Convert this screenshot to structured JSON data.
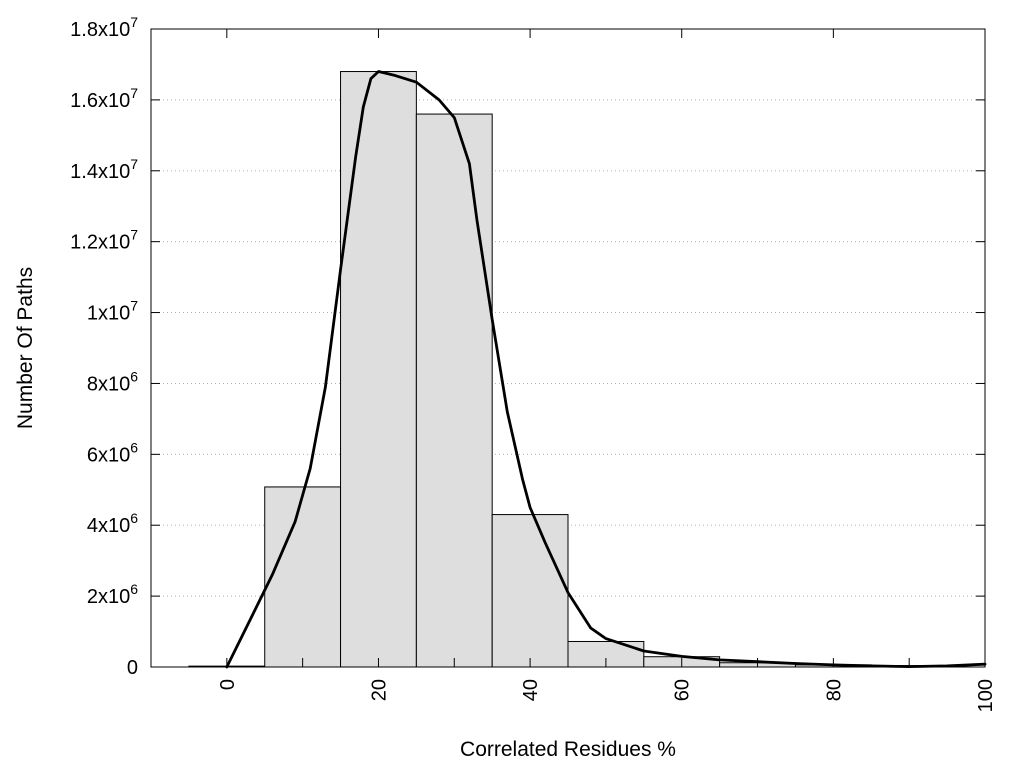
{
  "chart_data": {
    "type": "bar",
    "title": "",
    "xlabel": "Correlated Residues %",
    "ylabel": "Number Of Paths",
    "xlim": [
      -10,
      100
    ],
    "ylim": [
      0,
      18000000
    ],
    "grid": "horizontal-dotted",
    "legend": "none",
    "bars": [
      {
        "x": 0,
        "value": 25000
      },
      {
        "x": 10,
        "value": 5080000
      },
      {
        "x": 20,
        "value": 16800000
      },
      {
        "x": 30,
        "value": 15600000
      },
      {
        "x": 40,
        "value": 4300000
      },
      {
        "x": 50,
        "value": 720000
      },
      {
        "x": 60,
        "value": 290000
      },
      {
        "x": 70,
        "value": 120000
      },
      {
        "x": 80,
        "value": 60000
      },
      {
        "x": 90,
        "value": 40000
      }
    ],
    "bar_width": 10,
    "curve": {
      "x": [
        0,
        3,
        6,
        9,
        11,
        13,
        15,
        17,
        18,
        19,
        20,
        22,
        25,
        28,
        30,
        32,
        33,
        35,
        37,
        39,
        40,
        42,
        45,
        48,
        50,
        55,
        60,
        65,
        70,
        75,
        80,
        85,
        90,
        95,
        100
      ],
      "y": [
        0,
        1300000,
        2600000,
        4100000,
        5600000,
        7900000,
        11200000,
        14400000,
        15800000,
        16600000,
        16800000,
        16700000,
        16500000,
        16000000,
        15500000,
        14200000,
        12600000,
        9800000,
        7200000,
        5300000,
        4500000,
        3500000,
        2100000,
        1100000,
        800000,
        450000,
        300000,
        200000,
        150000,
        100000,
        60000,
        30000,
        10000,
        30000,
        80000
      ]
    },
    "x_ticks": [
      {
        "value": 0,
        "label": "0"
      },
      {
        "value": 20,
        "label": "20"
      },
      {
        "value": 40,
        "label": "40"
      },
      {
        "value": 60,
        "label": "60"
      },
      {
        "value": 80,
        "label": "80"
      },
      {
        "value": 100,
        "label": "100"
      }
    ],
    "x_minor_ticks": [
      10,
      30,
      50,
      70,
      90
    ],
    "y_ticks": [
      {
        "value": 0,
        "mantissa": "0",
        "exp": ""
      },
      {
        "value": 2000000,
        "mantissa": "2x10",
        "exp": "6"
      },
      {
        "value": 4000000,
        "mantissa": "4x10",
        "exp": "6"
      },
      {
        "value": 6000000,
        "mantissa": "6x10",
        "exp": "6"
      },
      {
        "value": 8000000,
        "mantissa": "8x10",
        "exp": "6"
      },
      {
        "value": 10000000,
        "mantissa": "1x10",
        "exp": "7"
      },
      {
        "value": 12000000,
        "mantissa": "1.2x10",
        "exp": "7"
      },
      {
        "value": 14000000,
        "mantissa": "1.4x10",
        "exp": "7"
      },
      {
        "value": 16000000,
        "mantissa": "1.6x10",
        "exp": "7"
      },
      {
        "value": 18000000,
        "mantissa": "1.8x10",
        "exp": "7"
      }
    ],
    "colors": {
      "bar_fill": "#dedede",
      "bar_stroke": "#000000",
      "curve": "#000000",
      "grid": "#b0b0b0"
    }
  }
}
